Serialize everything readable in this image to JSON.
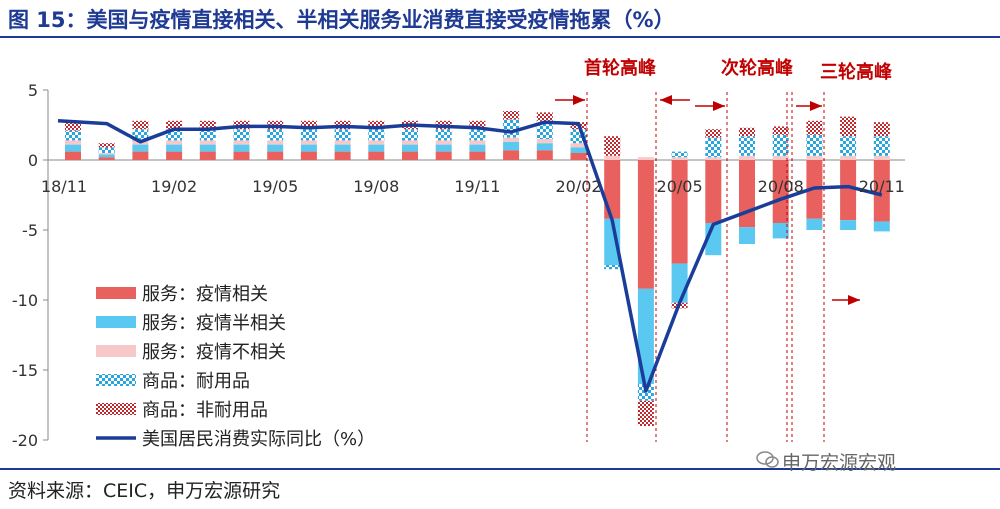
{
  "title": "图 15：美国与疫情直接相关、半相关服务业消费直接受疫情拖累（%）",
  "source": "资料来源：CEIC，申万宏源研究",
  "watermark": "申万宏源宏观",
  "colors": {
    "services_related": "#e8615f",
    "services_semi": "#5bc8f2",
    "services_unrelated": "#f6c8c8",
    "durable": "#29a5e0",
    "nondurable": "#c0282d",
    "line": "#1a3d9a",
    "annotation": "#c00000",
    "title": "#1f3a93"
  },
  "chart_data": {
    "type": "bar",
    "stacked": true,
    "ylim": [
      -20,
      5
    ],
    "yticks": [
      5,
      0,
      -5,
      -10,
      -15,
      -20
    ],
    "grid": false,
    "legend_position": "lower-left",
    "tick_labels": [
      {
        "label": "18/11",
        "index": 0
      },
      {
        "label": "19/02",
        "index": 3
      },
      {
        "label": "19/05",
        "index": 6
      },
      {
        "label": "19/08",
        "index": 9
      },
      {
        "label": "19/11",
        "index": 12
      },
      {
        "label": "20/02",
        "index": 15
      },
      {
        "label": "20/05",
        "index": 18
      },
      {
        "label": "20/08",
        "index": 21
      },
      {
        "label": "20/11",
        "index": 24
      }
    ],
    "series": [
      {
        "name": "服务：疫情相关",
        "key": "services_related",
        "kind": "bar",
        "values": [
          0.6,
          0.2,
          0.6,
          0.6,
          0.6,
          0.6,
          0.6,
          0.6,
          0.6,
          0.6,
          0.6,
          0.6,
          0.6,
          0.7,
          0.7,
          0.5,
          -4.2,
          -9.2,
          -7.4,
          -4.5,
          -4.8,
          -4.5,
          -4.2,
          -4.3,
          -4.4
        ]
      },
      {
        "name": "服务：疫情半相关",
        "key": "services_semi",
        "kind": "bar",
        "values": [
          0.5,
          0.2,
          0.5,
          0.5,
          0.5,
          0.5,
          0.5,
          0.5,
          0.5,
          0.5,
          0.5,
          0.5,
          0.5,
          0.6,
          0.5,
          0.4,
          -3.3,
          -6.8,
          -2.8,
          -2.3,
          -1.2,
          -1.1,
          -0.8,
          -0.7,
          -0.7
        ]
      },
      {
        "name": "服务：疫情不相关",
        "key": "services_unrelated",
        "kind": "bar",
        "values": [
          0.3,
          0.1,
          0.3,
          0.3,
          0.3,
          0.3,
          0.3,
          0.3,
          0.3,
          0.3,
          0.3,
          0.3,
          0.3,
          0.3,
          0.3,
          0.3,
          0.3,
          0.2,
          0.2,
          0.2,
          0.3,
          0.3,
          0.3,
          0.3,
          0.3
        ]
      },
      {
        "name": "商品：耐用品",
        "key": "durable",
        "kind": "bar",
        "values": [
          0.7,
          0.4,
          0.8,
          0.8,
          0.8,
          0.8,
          0.8,
          0.8,
          0.8,
          0.8,
          0.8,
          0.8,
          0.8,
          1.3,
          1.3,
          1.0,
          -0.3,
          -1.2,
          0.4,
          1.4,
          1.4,
          1.5,
          1.5,
          1.4,
          1.4
        ]
      },
      {
        "name": "商品：非耐用品",
        "key": "nondurable",
        "kind": "bar",
        "values": [
          0.6,
          0.3,
          0.6,
          0.6,
          0.6,
          0.6,
          0.6,
          0.6,
          0.6,
          0.6,
          0.6,
          0.6,
          0.6,
          0.6,
          0.6,
          0.5,
          1.4,
          -1.8,
          -0.4,
          0.6,
          0.6,
          0.6,
          1.0,
          1.4,
          1.0
        ]
      },
      {
        "name": "美国居民消费实际同比（%）",
        "key": "line",
        "kind": "line",
        "values": [
          2.8,
          2.6,
          1.3,
          2.2,
          2.2,
          2.4,
          2.4,
          2.3,
          2.4,
          2.3,
          2.5,
          2.4,
          2.3,
          2.0,
          2.7,
          2.6,
          -4.3,
          -16.5,
          -10.2,
          -4.6,
          -3.7,
          -2.8,
          -2.0,
          -1.9,
          -2.5
        ]
      }
    ],
    "annotations": [
      {
        "text": "首轮高峰",
        "from_index": 15.6,
        "to_index": 17.7
      },
      {
        "text": "次轮高峰",
        "from_index": 19.8,
        "to_index": 22.7
      },
      {
        "text": "三轮高峰",
        "from_index": 22.8,
        "to_index": 23.8
      }
    ]
  }
}
